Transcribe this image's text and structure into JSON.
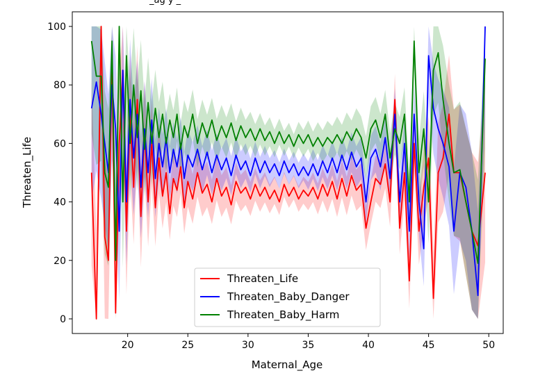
{
  "chart_data": {
    "type": "line",
    "title": "",
    "title_visible_fragment": "_ag   y                    _",
    "xlabel": "Maternal_Age",
    "ylabel": "Threaten_Life",
    "xlim": [
      15.4,
      51.2
    ],
    "ylim": [
      -5,
      105
    ],
    "x_ticks": [
      "20",
      "25",
      "30",
      "35",
      "40",
      "45",
      "50"
    ],
    "y_ticks": [
      "0",
      "20",
      "40",
      "60",
      "80",
      "100"
    ],
    "grid": false,
    "legend_position": "lower-center",
    "confidence_bands": true,
    "series": [
      {
        "name": "Threaten_Life",
        "color": "#ff0000",
        "points": [
          [
            17.0,
            50
          ],
          [
            17.4,
            0
          ],
          [
            17.8,
            100
          ],
          [
            18.1,
            28
          ],
          [
            18.4,
            20
          ],
          [
            18.7,
            90
          ],
          [
            19.0,
            2
          ],
          [
            19.3,
            60
          ],
          [
            19.6,
            85
          ],
          [
            19.9,
            30
          ],
          [
            20.2,
            70
          ],
          [
            20.5,
            45
          ],
          [
            20.8,
            75
          ],
          [
            21.1,
            35
          ],
          [
            21.4,
            65
          ],
          [
            21.7,
            40
          ],
          [
            22.0,
            60
          ],
          [
            22.3,
            38
          ],
          [
            22.6,
            55
          ],
          [
            22.9,
            42
          ],
          [
            23.2,
            50
          ],
          [
            23.5,
            36
          ],
          [
            23.8,
            48
          ],
          [
            24.1,
            44
          ],
          [
            24.4,
            52
          ],
          [
            24.7,
            38
          ],
          [
            25.0,
            47
          ],
          [
            25.4,
            41
          ],
          [
            25.8,
            50
          ],
          [
            26.2,
            43
          ],
          [
            26.6,
            46
          ],
          [
            27.0,
            40
          ],
          [
            27.4,
            48
          ],
          [
            27.8,
            42
          ],
          [
            28.2,
            45
          ],
          [
            28.6,
            39
          ],
          [
            29.0,
            47
          ],
          [
            29.4,
            43
          ],
          [
            29.8,
            45
          ],
          [
            30.2,
            41
          ],
          [
            30.6,
            46
          ],
          [
            31.0,
            42
          ],
          [
            31.4,
            45
          ],
          [
            31.8,
            41
          ],
          [
            32.2,
            44
          ],
          [
            32.6,
            40
          ],
          [
            33.0,
            46
          ],
          [
            33.4,
            42
          ],
          [
            33.8,
            45
          ],
          [
            34.2,
            41
          ],
          [
            34.6,
            44
          ],
          [
            35.0,
            42
          ],
          [
            35.4,
            45
          ],
          [
            35.8,
            41
          ],
          [
            36.2,
            46
          ],
          [
            36.6,
            42
          ],
          [
            37.0,
            47
          ],
          [
            37.4,
            41
          ],
          [
            37.8,
            48
          ],
          [
            38.2,
            42
          ],
          [
            38.6,
            49
          ],
          [
            39.0,
            44
          ],
          [
            39.4,
            46
          ],
          [
            39.8,
            31
          ],
          [
            40.2,
            40
          ],
          [
            40.6,
            48
          ],
          [
            41.0,
            46
          ],
          [
            41.4,
            53
          ],
          [
            41.8,
            40
          ],
          [
            42.2,
            75
          ],
          [
            42.6,
            31
          ],
          [
            43.0,
            50
          ],
          [
            43.4,
            13
          ],
          [
            43.8,
            60
          ],
          [
            44.2,
            30
          ],
          [
            44.6,
            45
          ],
          [
            45.0,
            55
          ],
          [
            45.4,
            7
          ],
          [
            45.8,
            50
          ],
          [
            46.2,
            55
          ],
          [
            46.7,
            70
          ],
          [
            47.1,
            50
          ],
          [
            47.6,
            50
          ],
          [
            48.1,
            40
          ],
          [
            48.6,
            30
          ],
          [
            49.1,
            25
          ],
          [
            49.7,
            50
          ]
        ]
      },
      {
        "name": "Threaten_Baby_Danger",
        "color": "#0000ff",
        "points": [
          [
            17.0,
            72
          ],
          [
            17.4,
            81
          ],
          [
            17.8,
            70
          ],
          [
            18.1,
            60
          ],
          [
            18.4,
            50
          ],
          [
            18.7,
            80
          ],
          [
            19.0,
            65
          ],
          [
            19.3,
            30
          ],
          [
            19.6,
            85
          ],
          [
            19.9,
            40
          ],
          [
            20.2,
            75
          ],
          [
            20.5,
            55
          ],
          [
            20.8,
            70
          ],
          [
            21.1,
            45
          ],
          [
            21.4,
            65
          ],
          [
            21.7,
            50
          ],
          [
            22.0,
            68
          ],
          [
            22.3,
            48
          ],
          [
            22.6,
            60
          ],
          [
            22.9,
            52
          ],
          [
            23.2,
            62
          ],
          [
            23.5,
            50
          ],
          [
            23.8,
            58
          ],
          [
            24.1,
            52
          ],
          [
            24.4,
            60
          ],
          [
            24.7,
            48
          ],
          [
            25.0,
            56
          ],
          [
            25.4,
            52
          ],
          [
            25.8,
            58
          ],
          [
            26.2,
            51
          ],
          [
            26.6,
            57
          ],
          [
            27.0,
            50
          ],
          [
            27.4,
            56
          ],
          [
            27.8,
            51
          ],
          [
            28.2,
            55
          ],
          [
            28.6,
            49
          ],
          [
            29.0,
            56
          ],
          [
            29.4,
            51
          ],
          [
            29.8,
            54
          ],
          [
            30.2,
            49
          ],
          [
            30.6,
            55
          ],
          [
            31.0,
            50
          ],
          [
            31.4,
            54
          ],
          [
            31.8,
            50
          ],
          [
            32.2,
            53
          ],
          [
            32.6,
            49
          ],
          [
            33.0,
            54
          ],
          [
            33.4,
            50
          ],
          [
            33.8,
            53
          ],
          [
            34.2,
            49
          ],
          [
            34.6,
            52
          ],
          [
            35.0,
            49
          ],
          [
            35.4,
            53
          ],
          [
            35.8,
            49
          ],
          [
            36.2,
            54
          ],
          [
            36.6,
            50
          ],
          [
            37.0,
            55
          ],
          [
            37.4,
            50
          ],
          [
            37.8,
            56
          ],
          [
            38.2,
            51
          ],
          [
            38.6,
            57
          ],
          [
            39.0,
            52
          ],
          [
            39.4,
            55
          ],
          [
            39.8,
            40
          ],
          [
            40.2,
            55
          ],
          [
            40.6,
            58
          ],
          [
            41.0,
            52
          ],
          [
            41.4,
            62
          ],
          [
            41.8,
            48
          ],
          [
            42.2,
            70
          ],
          [
            42.6,
            40
          ],
          [
            43.0,
            60
          ],
          [
            43.4,
            30
          ],
          [
            43.8,
            70
          ],
          [
            44.2,
            40
          ],
          [
            44.6,
            24
          ],
          [
            45.0,
            90
          ],
          [
            45.4,
            72
          ],
          [
            45.8,
            65
          ],
          [
            46.2,
            60
          ],
          [
            46.7,
            52
          ],
          [
            47.1,
            30
          ],
          [
            47.6,
            50
          ],
          [
            48.1,
            45
          ],
          [
            48.6,
            30
          ],
          [
            49.1,
            8
          ],
          [
            49.7,
            100
          ]
        ]
      },
      {
        "name": "Threaten_Baby_Harm",
        "color": "#008000",
        "points": [
          [
            17.0,
            95
          ],
          [
            17.4,
            83
          ],
          [
            17.8,
            83
          ],
          [
            18.1,
            50
          ],
          [
            18.4,
            45
          ],
          [
            18.7,
            95
          ],
          [
            19.0,
            20
          ],
          [
            19.3,
            100
          ],
          [
            19.6,
            40
          ],
          [
            19.9,
            90
          ],
          [
            20.2,
            60
          ],
          [
            20.5,
            80
          ],
          [
            20.8,
            62
          ],
          [
            21.1,
            78
          ],
          [
            21.4,
            58
          ],
          [
            21.7,
            74
          ],
          [
            22.0,
            60
          ],
          [
            22.3,
            72
          ],
          [
            22.6,
            62
          ],
          [
            22.9,
            70
          ],
          [
            23.2,
            60
          ],
          [
            23.5,
            68
          ],
          [
            23.8,
            62
          ],
          [
            24.1,
            70
          ],
          [
            24.4,
            58
          ],
          [
            24.7,
            66
          ],
          [
            25.0,
            62
          ],
          [
            25.4,
            70
          ],
          [
            25.8,
            60
          ],
          [
            26.2,
            67
          ],
          [
            26.6,
            62
          ],
          [
            27.0,
            68
          ],
          [
            27.4,
            61
          ],
          [
            27.8,
            66
          ],
          [
            28.2,
            62
          ],
          [
            28.6,
            67
          ],
          [
            29.0,
            61
          ],
          [
            29.4,
            66
          ],
          [
            29.8,
            62
          ],
          [
            30.2,
            65
          ],
          [
            30.6,
            61
          ],
          [
            31.0,
            65
          ],
          [
            31.4,
            61
          ],
          [
            31.8,
            64
          ],
          [
            32.2,
            60
          ],
          [
            32.6,
            64
          ],
          [
            33.0,
            60
          ],
          [
            33.4,
            63
          ],
          [
            33.8,
            59
          ],
          [
            34.2,
            63
          ],
          [
            34.6,
            60
          ],
          [
            35.0,
            63
          ],
          [
            35.4,
            59
          ],
          [
            35.8,
            62
          ],
          [
            36.2,
            59
          ],
          [
            36.6,
            62
          ],
          [
            37.0,
            60
          ],
          [
            37.4,
            63
          ],
          [
            37.8,
            60
          ],
          [
            38.2,
            64
          ],
          [
            38.6,
            61
          ],
          [
            39.0,
            65
          ],
          [
            39.4,
            62
          ],
          [
            39.8,
            55
          ],
          [
            40.2,
            65
          ],
          [
            40.6,
            68
          ],
          [
            41.0,
            62
          ],
          [
            41.4,
            70
          ],
          [
            41.8,
            55
          ],
          [
            42.2,
            65
          ],
          [
            42.6,
            60
          ],
          [
            43.0,
            70
          ],
          [
            43.4,
            40
          ],
          [
            43.8,
            95
          ],
          [
            44.2,
            50
          ],
          [
            44.6,
            65
          ],
          [
            45.0,
            40
          ],
          [
            45.4,
            85
          ],
          [
            45.8,
            91
          ],
          [
            46.2,
            75
          ],
          [
            46.7,
            60
          ],
          [
            47.1,
            50
          ],
          [
            47.6,
            51
          ],
          [
            48.1,
            40
          ],
          [
            48.6,
            30
          ],
          [
            49.1,
            19
          ],
          [
            49.7,
            89
          ]
        ]
      }
    ]
  }
}
